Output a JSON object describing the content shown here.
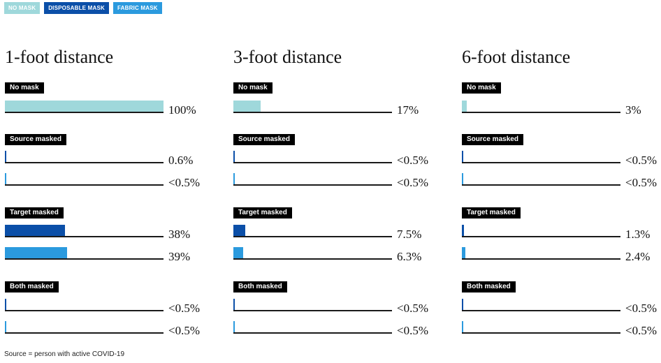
{
  "legend": [
    {
      "label": "NO MASK",
      "color": "#9fd8db"
    },
    {
      "label": "DISPOSABLE MASK",
      "color": "#0b4fa8"
    },
    {
      "label": "FABRIC MASK",
      "color": "#2b9ade"
    }
  ],
  "chart_data": [
    {
      "type": "bar",
      "title": "1-foot distance",
      "groups": [
        {
          "label": "No mask",
          "bars": [
            {
              "series": "NO MASK",
              "value": 100,
              "value_label": "100%"
            }
          ]
        },
        {
          "label": "Source masked",
          "bars": [
            {
              "series": "DISPOSABLE MASK",
              "value": 0.6,
              "value_label": "0.6%"
            },
            {
              "series": "FABRIC MASK",
              "value": 0.5,
              "value_label": "<0.5%"
            }
          ]
        },
        {
          "label": "Target masked",
          "bars": [
            {
              "series": "DISPOSABLE MASK",
              "value": 38,
              "value_label": "38%"
            },
            {
              "series": "FABRIC MASK",
              "value": 39,
              "value_label": "39%"
            }
          ]
        },
        {
          "label": "Both masked",
          "bars": [
            {
              "series": "DISPOSABLE MASK",
              "value": 0.5,
              "value_label": "<0.5%"
            },
            {
              "series": "FABRIC MASK",
              "value": 0.5,
              "value_label": "<0.5%"
            }
          ]
        }
      ]
    },
    {
      "type": "bar",
      "title": "3-foot distance",
      "groups": [
        {
          "label": "No mask",
          "bars": [
            {
              "series": "NO MASK",
              "value": 17,
              "value_label": "17%"
            }
          ]
        },
        {
          "label": "Source masked",
          "bars": [
            {
              "series": "DISPOSABLE MASK",
              "value": 0.5,
              "value_label": "<0.5%"
            },
            {
              "series": "FABRIC MASK",
              "value": 0.5,
              "value_label": "<0.5%"
            }
          ]
        },
        {
          "label": "Target masked",
          "bars": [
            {
              "series": "DISPOSABLE MASK",
              "value": 7.5,
              "value_label": "7.5%"
            },
            {
              "series": "FABRIC MASK",
              "value": 6.3,
              "value_label": "6.3%"
            }
          ]
        },
        {
          "label": "Both masked",
          "bars": [
            {
              "series": "DISPOSABLE MASK",
              "value": 0.5,
              "value_label": "<0.5%"
            },
            {
              "series": "FABRIC MASK",
              "value": 0.5,
              "value_label": "<0.5%"
            }
          ]
        }
      ]
    },
    {
      "type": "bar",
      "title": "6-foot distance",
      "groups": [
        {
          "label": "No mask",
          "bars": [
            {
              "series": "NO MASK",
              "value": 3,
              "value_label": "3%"
            }
          ]
        },
        {
          "label": "Source masked",
          "bars": [
            {
              "series": "DISPOSABLE MASK",
              "value": 0.5,
              "value_label": "<0.5%"
            },
            {
              "series": "FABRIC MASK",
              "value": 0.5,
              "value_label": "<0.5%"
            }
          ]
        },
        {
          "label": "Target masked",
          "bars": [
            {
              "series": "DISPOSABLE MASK",
              "value": 1.3,
              "value_label": "1.3%"
            },
            {
              "series": "FABRIC MASK",
              "value": 2.4,
              "value_label": "2.4%"
            }
          ]
        },
        {
          "label": "Both masked",
          "bars": [
            {
              "series": "DISPOSABLE MASK",
              "value": 0.5,
              "value_label": "<0.5%"
            },
            {
              "series": "FABRIC MASK",
              "value": 0.5,
              "value_label": "<0.5%"
            }
          ]
        }
      ]
    }
  ],
  "footnote": "Source = person with active COVID-19"
}
